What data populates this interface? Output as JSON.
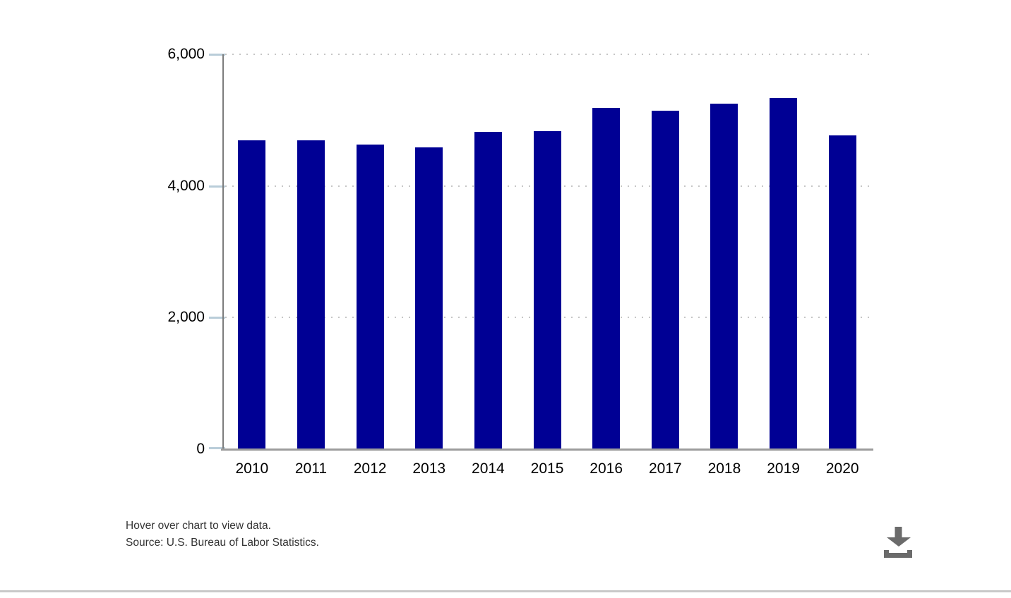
{
  "chart_data": {
    "type": "bar",
    "title": "",
    "xlabel": "",
    "ylabel": "",
    "categories": [
      "2010",
      "2011",
      "2012",
      "2013",
      "2014",
      "2015",
      "2016",
      "2017",
      "2018",
      "2019",
      "2020"
    ],
    "values": [
      4690,
      4693,
      4628,
      4585,
      4821,
      4836,
      5190,
      5147,
      5250,
      5333,
      4764
    ],
    "ylim": [
      0,
      6000
    ],
    "y_ticks": [
      {
        "value": 6000,
        "label": "6,000"
      },
      {
        "value": 4000,
        "label": "4,000"
      },
      {
        "value": 2000,
        "label": "2,000"
      },
      {
        "value": 0,
        "label": "0"
      }
    ],
    "grid": "horizontal-dotted",
    "legend": "none",
    "bar_color": "#000094"
  },
  "footer": {
    "hover_note": "Hover over chart to view data.",
    "source": "Source: U.S. Bureau of Labor Statistics."
  },
  "icons": {
    "download": "download-icon"
  },
  "colors": {
    "bar": "#000094",
    "axis_y": "#7d7d7d",
    "axis_x": "#9c9c9c",
    "gridline": "#c6c6c6",
    "tick": "#b9cdd9",
    "label_text": "#000000",
    "footer_text": "#333333",
    "download_icon": "#6b6b6b",
    "divider": "#c9c9c9",
    "background": "#ffffff"
  }
}
